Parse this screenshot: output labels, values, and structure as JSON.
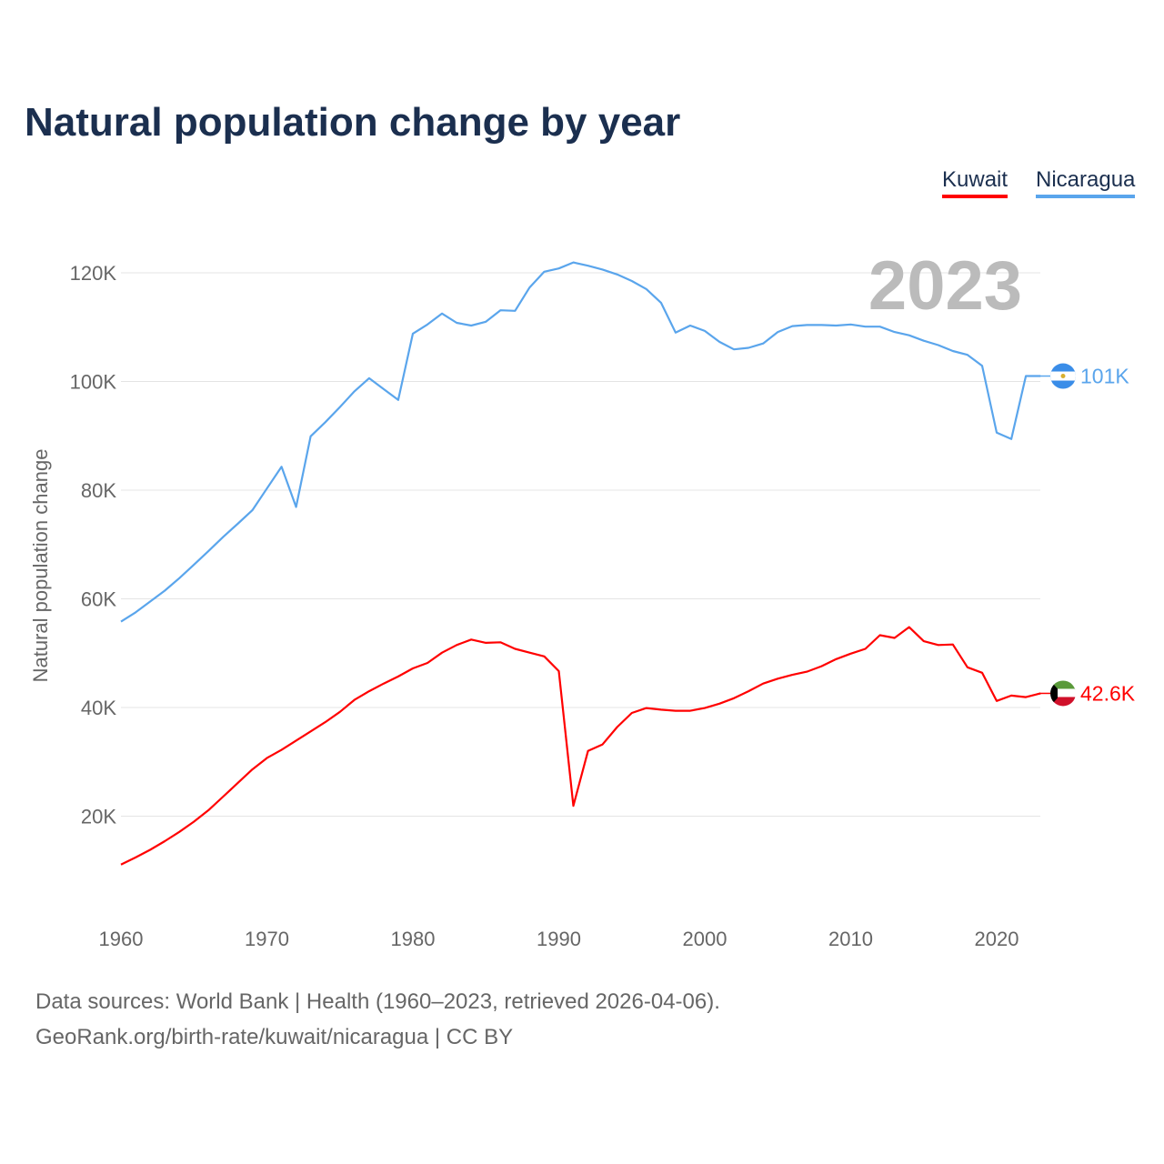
{
  "title": "Natural population change by year",
  "legend": [
    {
      "name": "Kuwait",
      "color": "#ff0000"
    },
    {
      "name": "Nicaragua",
      "color": "#5aa5ec"
    }
  ],
  "footer": {
    "line1": "Data sources: World Bank | Health (1960–2023, retrieved 2026-04-06).",
    "line2": "GeoRank.org/birth-rate/kuwait/nicaragua | CC BY"
  },
  "chart_data": {
    "type": "line",
    "title": "Natural population change by year",
    "ylabel": "Natural population change",
    "xlabel": "",
    "year_label": "2023",
    "xlim": [
      1960,
      2023
    ],
    "ylim": [
      0,
      125000
    ],
    "x_ticks": [
      "1960",
      "1970",
      "1980",
      "1990",
      "2000",
      "2010",
      "2020"
    ],
    "y_ticks": [
      {
        "v": 20000,
        "label": "20K"
      },
      {
        "v": 40000,
        "label": "40K"
      },
      {
        "v": 60000,
        "label": "60K"
      },
      {
        "v": 80000,
        "label": "80K"
      },
      {
        "v": 100000,
        "label": "100K"
      },
      {
        "v": 120000,
        "label": "120K"
      }
    ],
    "grid": true,
    "legend_position": "top-right",
    "x_start": 1960,
    "series": [
      {
        "name": "Nicaragua",
        "color": "#5aa5ec",
        "end_label": "101K",
        "values_k": [
          55.8,
          57.5,
          59.5,
          61.5,
          63.8,
          66.3,
          68.8,
          71.4,
          73.8,
          76.3,
          80.3,
          84.3,
          76.9,
          89.9,
          92.5,
          95.3,
          98.2,
          100.6,
          98.6,
          96.6,
          108.8,
          110.5,
          112.5,
          110.8,
          110.3,
          111.0,
          113.1,
          113.0,
          117.3,
          120.2,
          120.8,
          121.9,
          121.3,
          120.6,
          119.7,
          118.5,
          117.0,
          114.5,
          109.0,
          110.3,
          109.3,
          107.3,
          105.9,
          106.2,
          107.0,
          109.1,
          110.2,
          110.4,
          110.4,
          110.3,
          110.5,
          110.1,
          110.1,
          109.1,
          108.5,
          107.5,
          106.7,
          105.6,
          104.9,
          102.9,
          90.6,
          89.4,
          101.0,
          101.0
        ]
      },
      {
        "name": "Kuwait",
        "color": "#ff0000",
        "end_label": "42.6K",
        "values_k": [
          11.1,
          12.4,
          13.8,
          15.4,
          17.1,
          19.0,
          21.1,
          23.6,
          26.1,
          28.6,
          30.7,
          32.2,
          33.9,
          35.6,
          37.3,
          39.2,
          41.4,
          43.0,
          44.4,
          45.7,
          47.2,
          48.2,
          50.1,
          51.5,
          52.5,
          51.9,
          52.0,
          50.8,
          50.1,
          49.4,
          46.7,
          21.9,
          32.0,
          33.2,
          36.4,
          39.0,
          39.9,
          39.6,
          39.4,
          39.4,
          39.9,
          40.7,
          41.7,
          43.0,
          44.4,
          45.3,
          46.0,
          46.6,
          47.6,
          48.9,
          49.9,
          50.8,
          53.3,
          52.8,
          54.8,
          52.2,
          51.5,
          51.6,
          47.4,
          46.4,
          41.2,
          42.2,
          41.9,
          42.6
        ]
      }
    ]
  }
}
